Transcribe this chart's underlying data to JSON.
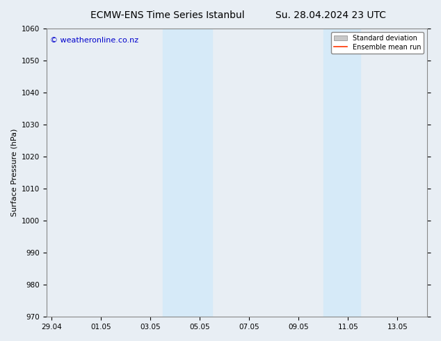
{
  "title_left": "ECMW-ENS Time Series Istanbul",
  "title_right": "Su. 28.04.2024 23 UTC",
  "ylabel": "Surface Pressure (hPa)",
  "ylim": [
    970,
    1060
  ],
  "yticks": [
    970,
    980,
    990,
    1000,
    1010,
    1020,
    1030,
    1040,
    1050,
    1060
  ],
  "xtick_labels": [
    "29.04",
    "01.05",
    "03.05",
    "05.05",
    "07.05",
    "09.05",
    "11.05",
    "13.05"
  ],
  "xtick_positions": [
    0,
    2,
    4,
    6,
    8,
    10,
    12,
    14
  ],
  "xlim": [
    -0.2,
    15.2
  ],
  "shaded_bands": [
    {
      "x_start": 4.5,
      "x_end": 6.5
    },
    {
      "x_start": 11.0,
      "x_end": 12.5
    }
  ],
  "shade_color": "#d6eaf8",
  "shade_alpha": 1.0,
  "background_color": "#e8eef4",
  "plot_bg_color": "#e8eef4",
  "watermark_text": "© weatheronline.co.nz",
  "watermark_color": "#0000cc",
  "watermark_fontsize": 8,
  "legend_items": [
    {
      "label": "Standard deviation",
      "color": "#c8c8c8",
      "type": "patch"
    },
    {
      "label": "Ensemble mean run",
      "color": "#ff3300",
      "type": "line"
    }
  ],
  "title_fontsize": 10,
  "tick_label_fontsize": 7.5,
  "ylabel_fontsize": 8
}
